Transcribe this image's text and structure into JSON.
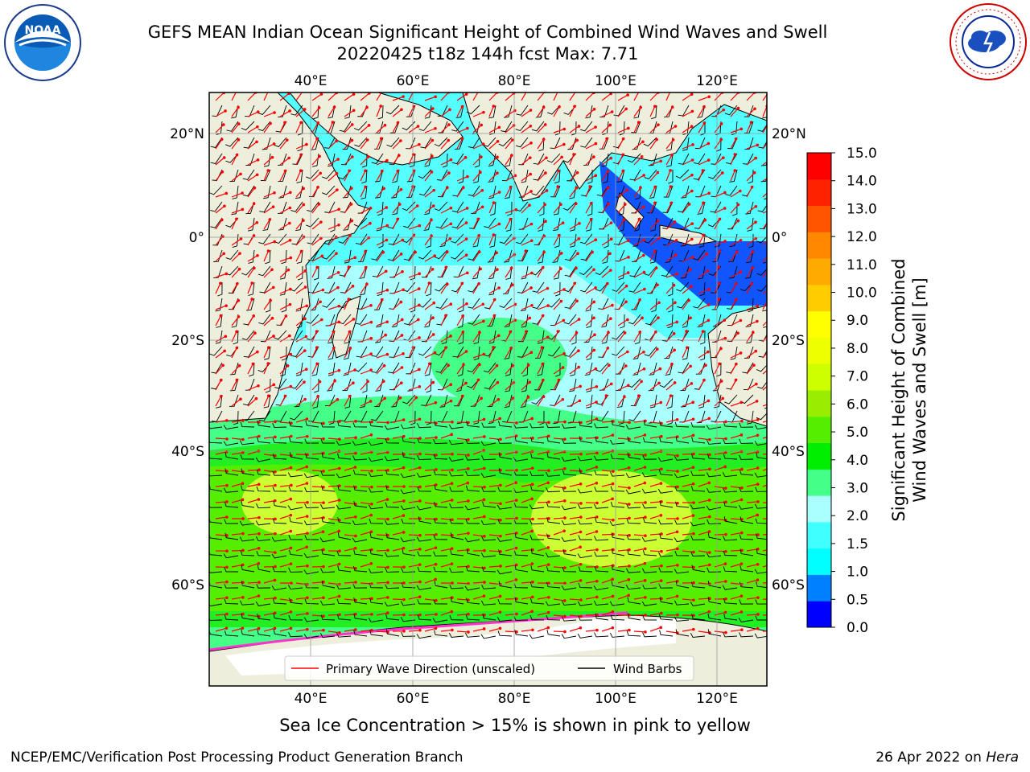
{
  "header": {
    "title_line1": "GEFS MEAN Indian Ocean Significant Height of Combined Wind Waves and Swell",
    "title_line2": "20220425 t18z 144h fcst   Max: 7.71"
  },
  "logos": {
    "noara_label": "NOAA",
    "noaa_ring_text": "NATIONAL OCEANIC AND ATMOSPHERIC ADMINISTRATION",
    "noaa_bottom_text": "U.S. DEPARTMENT OF COMMERCE",
    "nws_ring_text": "NATIONAL WEATHER SERVICE"
  },
  "map": {
    "lon_ticks": [
      "40°E",
      "60°E",
      "80°E",
      "100°E",
      "120°E"
    ],
    "lat_ticks": [
      "20°N",
      "0°",
      "20°S",
      "40°S",
      "60°S"
    ],
    "legend": {
      "wave_direction": "Primary Wave Direction (unscaled)",
      "wind_barbs": "Wind Barbs"
    },
    "colors": {
      "land": "#eeeedd",
      "ice": "#ffffff",
      "wave_arrow": "#ff0000",
      "wind_barb": "#000000"
    }
  },
  "colorbar": {
    "label_line1": "Significant Height of Combined",
    "label_line2": "Wind Waves and Swell [m]",
    "ticks": [
      "0.0",
      "0.5",
      "1.0",
      "1.5",
      "2.0",
      "3.0",
      "4.0",
      "5.0",
      "6.0",
      "7.0",
      "8.0",
      "9.0",
      "10.0",
      "11.0",
      "12.0",
      "13.0",
      "14.0",
      "15.0"
    ],
    "colors": [
      "#0000ff",
      "#0080ff",
      "#00ffff",
      "#40ffff",
      "#aaffff",
      "#44ff88",
      "#00ee00",
      "#55ee00",
      "#99ee00",
      "#ccff00",
      "#eeff00",
      "#ffff00",
      "#ffcc00",
      "#ffaa00",
      "#ff8800",
      "#ff5500",
      "#ff2200",
      "#ff0000"
    ]
  },
  "note": "Sea Ice Concentration > 15% is shown in pink to yellow",
  "footer": {
    "left": "NCEP/EMC/Verification Post Processing Product Generation Branch",
    "right_date": "26 Apr 2022 on",
    "right_host": "Hera"
  }
}
